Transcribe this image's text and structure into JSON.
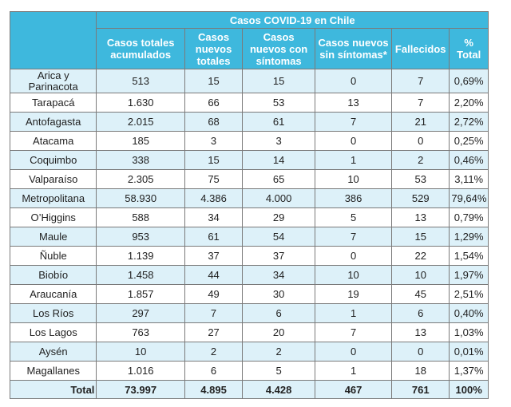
{
  "table": {
    "title": "Casos COVID-19 en Chile",
    "columns": [
      "Casos totales acumulados",
      "Casos nuevos totales",
      "Casos nuevos con síntomas",
      "Casos nuevos sin síntomas*",
      "Fallecidos",
      "% Total"
    ],
    "rows": [
      {
        "region": "Arica y Parinacota",
        "values": [
          "513",
          "15",
          "15",
          "0",
          "7",
          "0,69%"
        ]
      },
      {
        "region": "Tarapacá",
        "values": [
          "1.630",
          "66",
          "53",
          "13",
          "7",
          "2,20%"
        ]
      },
      {
        "region": "Antofagasta",
        "values": [
          "2.015",
          "68",
          "61",
          "7",
          "21",
          "2,72%"
        ]
      },
      {
        "region": "Atacama",
        "values": [
          "185",
          "3",
          "3",
          "0",
          "0",
          "0,25%"
        ]
      },
      {
        "region": "Coquimbo",
        "values": [
          "338",
          "15",
          "14",
          "1",
          "2",
          "0,46%"
        ]
      },
      {
        "region": "Valparaíso",
        "values": [
          "2.305",
          "75",
          "65",
          "10",
          "53",
          "3,11%"
        ]
      },
      {
        "region": "Metropolitana",
        "values": [
          "58.930",
          "4.386",
          "4.000",
          "386",
          "529",
          "79,64%"
        ]
      },
      {
        "region": "O’Higgins",
        "values": [
          "588",
          "34",
          "29",
          "5",
          "13",
          "0,79%"
        ]
      },
      {
        "region": "Maule",
        "values": [
          "953",
          "61",
          "54",
          "7",
          "15",
          "1,29%"
        ]
      },
      {
        "region": "Ñuble",
        "values": [
          "1.139",
          "37",
          "37",
          "0",
          "22",
          "1,54%"
        ]
      },
      {
        "region": "Biobío",
        "values": [
          "1.458",
          "44",
          "34",
          "10",
          "10",
          "1,97%"
        ]
      },
      {
        "region": "Araucanía",
        "values": [
          "1.857",
          "49",
          "30",
          "19",
          "45",
          "2,51%"
        ]
      },
      {
        "region": "Los Ríos",
        "values": [
          "297",
          "7",
          "6",
          "1",
          "6",
          "0,40%"
        ]
      },
      {
        "region": "Los Lagos",
        "values": [
          "763",
          "27",
          "20",
          "7",
          "13",
          "1,03%"
        ]
      },
      {
        "region": "Aysén",
        "values": [
          "10",
          "2",
          "2",
          "0",
          "0",
          "0,01%"
        ]
      },
      {
        "region": "Magallanes",
        "values": [
          "1.016",
          "6",
          "5",
          "1",
          "18",
          "1,37%"
        ]
      }
    ],
    "total": {
      "label": "Total",
      "values": [
        "73.997",
        "4.895",
        "4.428",
        "467",
        "761",
        "100%"
      ]
    }
  },
  "colors": {
    "header_bg": "#3eb8dd",
    "header_text": "#ffffff",
    "alt_row_bg": "#ddf1f9",
    "border": "#7a7a7a"
  }
}
